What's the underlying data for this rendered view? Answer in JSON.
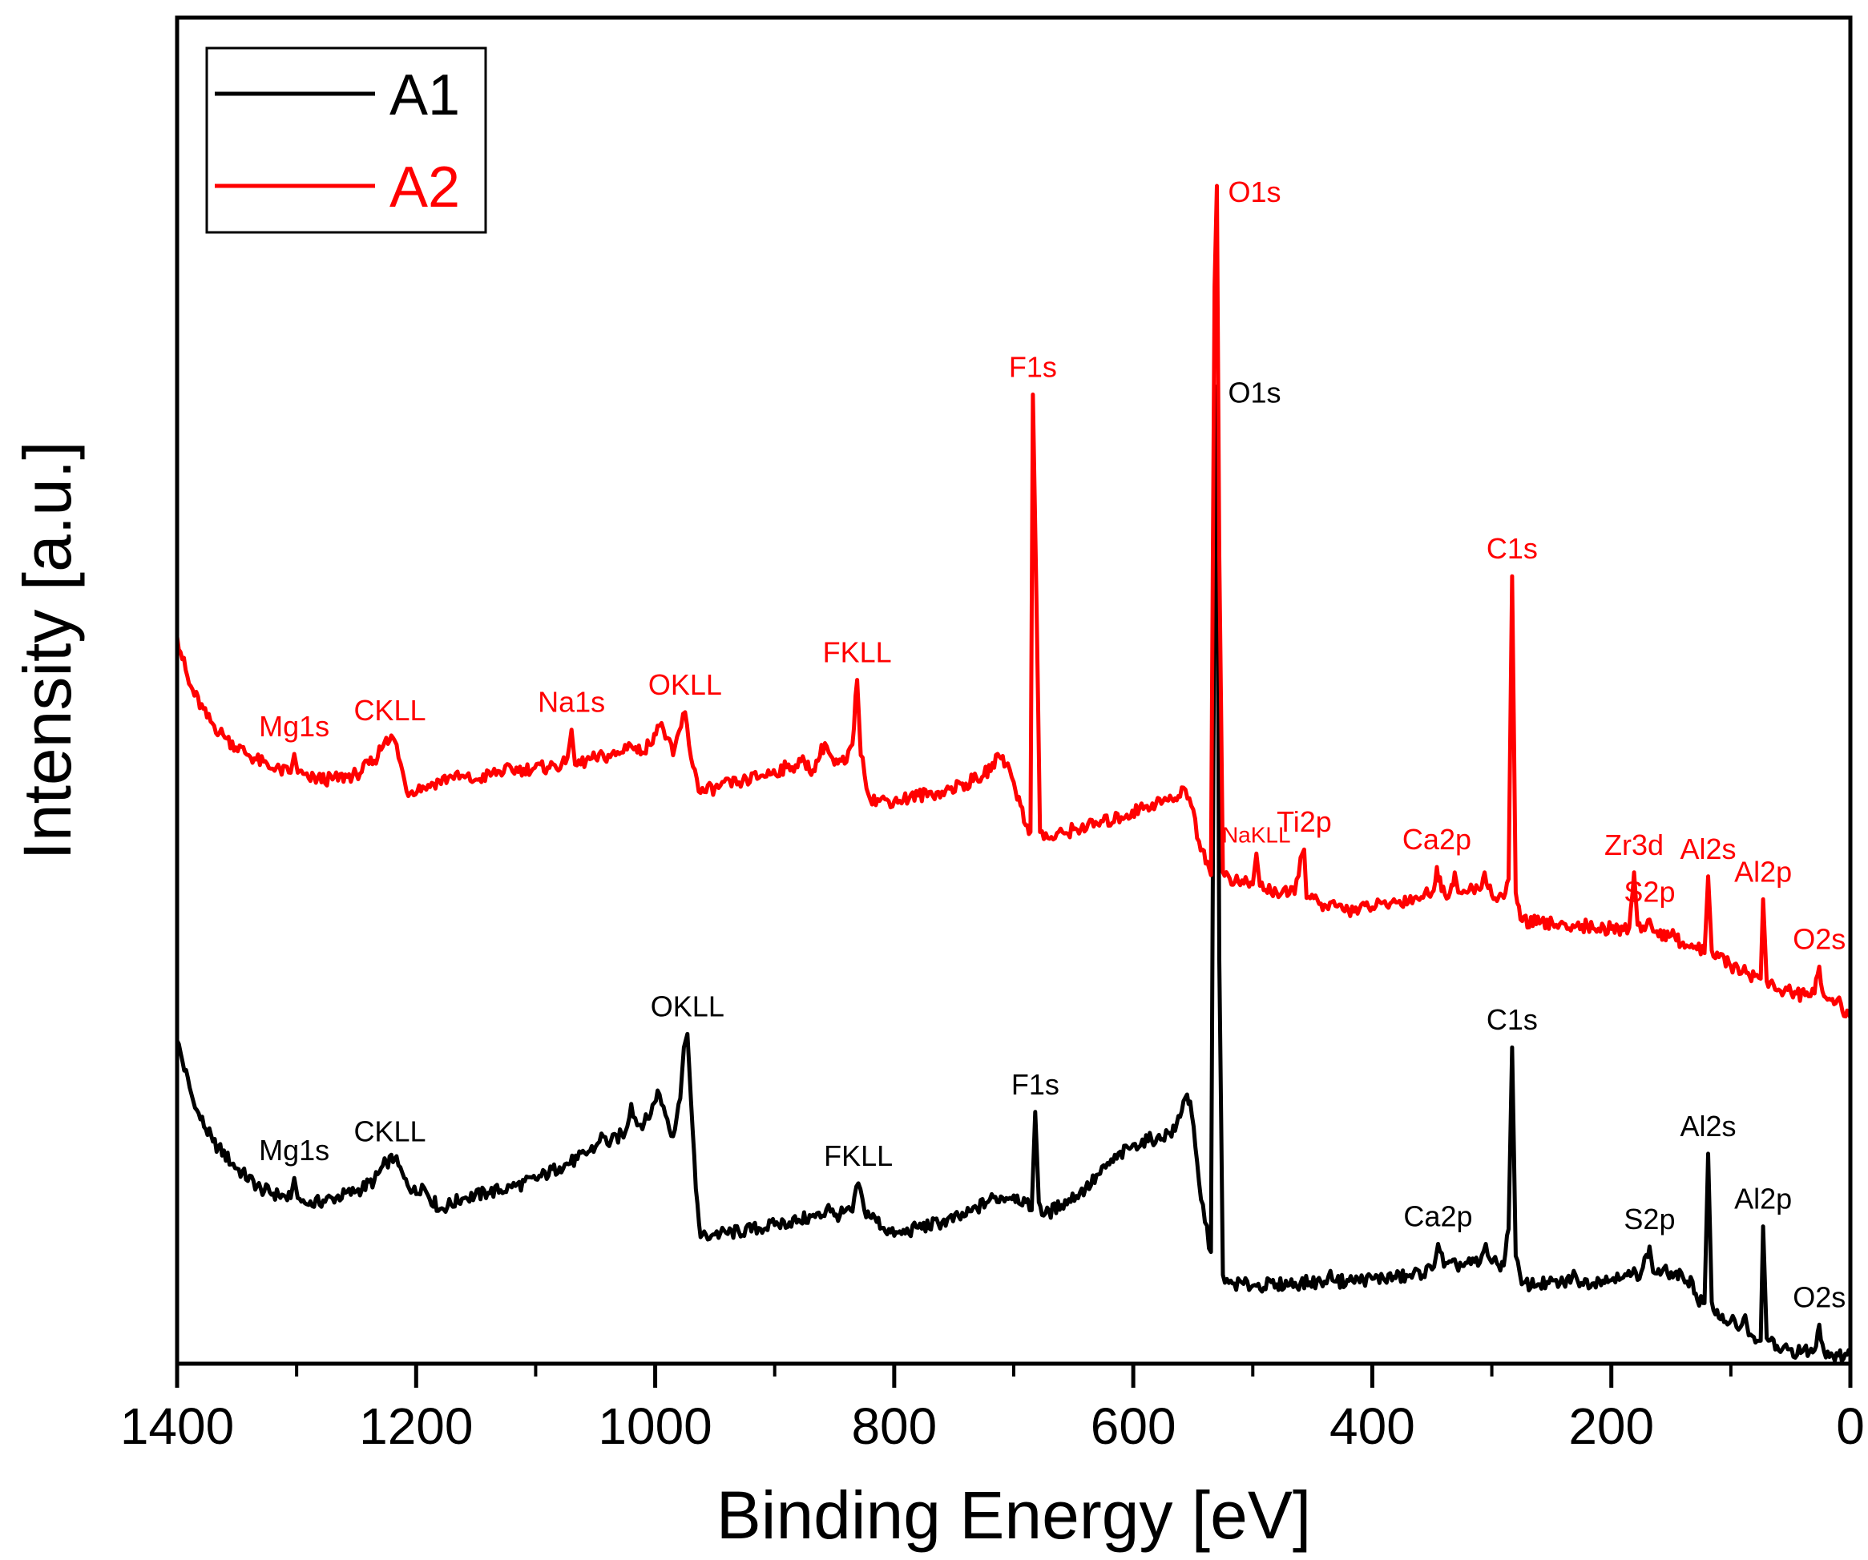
{
  "chart_data": {
    "type": "line",
    "title": "",
    "xlabel": "Binding Energy [eV]",
    "ylabel": "Intensity [a.u.]",
    "xlim": [
      1400,
      0
    ],
    "ylim": [
      0,
      100
    ],
    "x_reversed": true,
    "y_ticks_shown": false,
    "grid": false,
    "legend_position": "top-left",
    "x_ticks": [
      "1400",
      "1200",
      "1000",
      "800",
      "600",
      "400",
      "200",
      "0"
    ],
    "series": [
      {
        "name": "A1",
        "color": "#000000",
        "points": [
          [
            1400,
            24.0
          ],
          [
            1385,
            19.0
          ],
          [
            1370,
            16.5
          ],
          [
            1350,
            14.5
          ],
          [
            1330,
            13.0
          ],
          [
            1315,
            12.5
          ],
          [
            1305,
            12.3
          ],
          [
            1302,
            13.8
          ],
          [
            1299,
            12.3
          ],
          [
            1290,
            11.8
          ],
          [
            1270,
            12.3
          ],
          [
            1250,
            12.8
          ],
          [
            1235,
            13.6
          ],
          [
            1225,
            15.0
          ],
          [
            1218,
            15.2
          ],
          [
            1210,
            13.8
          ],
          [
            1200,
            12.6
          ],
          [
            1195,
            13.3
          ],
          [
            1190,
            12.5
          ],
          [
            1180,
            11.5
          ],
          [
            1160,
            12.3
          ],
          [
            1140,
            12.7
          ],
          [
            1120,
            13.1
          ],
          [
            1100,
            13.7
          ],
          [
            1080,
            14.6
          ],
          [
            1065,
            15.2
          ],
          [
            1050,
            16.1
          ],
          [
            1045,
            17.1
          ],
          [
            1040,
            16.3
          ],
          [
            1025,
            17.2
          ],
          [
            1020,
            19.3
          ],
          [
            1015,
            17.7
          ],
          [
            1005,
            18.2
          ],
          [
            998,
            20.3
          ],
          [
            993,
            19.1
          ],
          [
            985,
            16.9
          ],
          [
            979,
            19.7
          ],
          [
            976,
            23.5
          ],
          [
            973,
            24.5
          ],
          [
            970,
            19.5
          ],
          [
            966,
            13.0
          ],
          [
            962,
            9.4
          ],
          [
            950,
            9.6
          ],
          [
            930,
            9.8
          ],
          [
            900,
            10.3
          ],
          [
            880,
            10.7
          ],
          [
            860,
            11.0
          ],
          [
            855,
            11.8
          ],
          [
            850,
            11.0
          ],
          [
            835,
            11.3
          ],
          [
            830,
            13.4
          ],
          [
            825,
            11.4
          ],
          [
            800,
            9.5
          ],
          [
            780,
            10.1
          ],
          [
            760,
            10.5
          ],
          [
            740,
            11.0
          ],
          [
            720,
            12.2
          ],
          [
            700,
            12.5
          ],
          [
            690,
            12.0
          ],
          [
            685,
            11.4
          ],
          [
            682,
            18.7
          ],
          [
            679,
            12.0
          ],
          [
            675,
            11.0
          ],
          [
            660,
            11.8
          ],
          [
            640,
            13.0
          ],
          [
            620,
            14.8
          ],
          [
            600,
            16.3
          ],
          [
            580,
            16.8
          ],
          [
            565,
            17.3
          ],
          [
            558,
            19.5
          ],
          [
            555,
            20.0
          ],
          [
            551,
            18.5
          ],
          [
            545,
            13.5
          ],
          [
            540,
            10.5
          ],
          [
            535,
            8.3
          ],
          [
            532,
            61.0
          ],
          [
            530,
            72.6
          ],
          [
            528,
            30.0
          ],
          [
            525,
            6.6
          ],
          [
            520,
            6.0
          ],
          [
            500,
            5.8
          ],
          [
            480,
            5.9
          ],
          [
            460,
            6.0
          ],
          [
            440,
            6.1
          ],
          [
            435,
            6.9
          ],
          [
            430,
            6.1
          ],
          [
            400,
            6.3
          ],
          [
            370,
            6.5
          ],
          [
            350,
            7.0
          ],
          [
            345,
            8.9
          ],
          [
            340,
            7.2
          ],
          [
            310,
            7.5
          ],
          [
            305,
            8.9
          ],
          [
            300,
            7.5
          ],
          [
            290,
            7.3
          ],
          [
            286,
            10.0
          ],
          [
            283,
            23.5
          ],
          [
            280,
            8.0
          ],
          [
            275,
            5.9
          ],
          [
            260,
            5.9
          ],
          [
            240,
            6.0
          ],
          [
            230,
            6.6
          ],
          [
            225,
            6.0
          ],
          [
            210,
            6.2
          ],
          [
            200,
            6.2
          ],
          [
            195,
            6.7
          ],
          [
            190,
            6.4
          ],
          [
            175,
            6.8
          ],
          [
            168,
            8.7
          ],
          [
            165,
            6.8
          ],
          [
            150,
            6.8
          ],
          [
            140,
            6.4
          ],
          [
            132,
            6.1
          ],
          [
            128,
            4.7
          ],
          [
            122,
            4.5
          ],
          [
            119,
            15.6
          ],
          [
            116,
            4.6
          ],
          [
            110,
            3.4
          ],
          [
            100,
            3.2
          ],
          [
            92,
            2.7
          ],
          [
            88,
            3.6
          ],
          [
            85,
            2.1
          ],
          [
            78,
            1.7
          ],
          [
            75,
            1.7
          ],
          [
            73,
            10.2
          ],
          [
            70,
            1.9
          ],
          [
            60,
            1.0
          ],
          [
            40,
            0.9
          ],
          [
            30,
            1.0
          ],
          [
            26,
            2.9
          ],
          [
            22,
            0.9
          ],
          [
            10,
            0.6
          ],
          [
            0,
            0.8
          ]
        ]
      },
      {
        "name": "A2",
        "color": "#ff0000",
        "points": [
          [
            1400,
            54.0
          ],
          [
            1390,
            50.5
          ],
          [
            1375,
            48.0
          ],
          [
            1360,
            46.5
          ],
          [
            1340,
            45.2
          ],
          [
            1320,
            44.2
          ],
          [
            1305,
            43.9
          ],
          [
            1302,
            45.3
          ],
          [
            1299,
            43.9
          ],
          [
            1290,
            43.5
          ],
          [
            1270,
            43.4
          ],
          [
            1250,
            43.8
          ],
          [
            1235,
            44.8
          ],
          [
            1225,
            46.5
          ],
          [
            1218,
            46.3
          ],
          [
            1213,
            44.6
          ],
          [
            1208,
            42.5
          ],
          [
            1190,
            43.0
          ],
          [
            1170,
            43.6
          ],
          [
            1150,
            43.4
          ],
          [
            1130,
            44.0
          ],
          [
            1110,
            44.2
          ],
          [
            1090,
            44.3
          ],
          [
            1075,
            44.6
          ],
          [
            1070,
            47.1
          ],
          [
            1067,
            44.5
          ],
          [
            1050,
            45.0
          ],
          [
            1030,
            45.3
          ],
          [
            1022,
            46.1
          ],
          [
            1015,
            45.4
          ],
          [
            1005,
            46.0
          ],
          [
            998,
            47.4
          ],
          [
            993,
            47.1
          ],
          [
            985,
            45.2
          ],
          [
            980,
            47.0
          ],
          [
            975,
            48.4
          ],
          [
            970,
            45.0
          ],
          [
            962,
            42.4
          ],
          [
            950,
            42.8
          ],
          [
            930,
            43.2
          ],
          [
            910,
            43.7
          ],
          [
            890,
            44.3
          ],
          [
            875,
            44.7
          ],
          [
            868,
            44.1
          ],
          [
            858,
            46.1
          ],
          [
            850,
            44.5
          ],
          [
            840,
            44.7
          ],
          [
            835,
            46.0
          ],
          [
            831,
            50.8
          ],
          [
            828,
            45.2
          ],
          [
            820,
            41.9
          ],
          [
            800,
            41.8
          ],
          [
            780,
            42.2
          ],
          [
            760,
            42.5
          ],
          [
            740,
            43.1
          ],
          [
            725,
            43.7
          ],
          [
            712,
            45.1
          ],
          [
            705,
            44.6
          ],
          [
            700,
            43.2
          ],
          [
            690,
            40.0
          ],
          [
            686,
            39.5
          ],
          [
            684,
            72.0
          ],
          [
            681,
            57.0
          ],
          [
            678,
            39.5
          ],
          [
            670,
            39.0
          ],
          [
            650,
            39.7
          ],
          [
            630,
            40.1
          ],
          [
            610,
            40.6
          ],
          [
            590,
            41.4
          ],
          [
            575,
            41.8
          ],
          [
            565,
            42.0
          ],
          [
            558,
            42.8
          ],
          [
            553,
            42.0
          ],
          [
            545,
            38.8
          ],
          [
            538,
            37.3
          ],
          [
            535,
            36.3
          ],
          [
            532,
            80.0
          ],
          [
            530,
            87.5
          ],
          [
            528,
            60.0
          ],
          [
            525,
            36.5
          ],
          [
            515,
            35.8
          ],
          [
            500,
            35.6
          ],
          [
            497,
            37.9
          ],
          [
            494,
            35.5
          ],
          [
            480,
            35.0
          ],
          [
            465,
            34.9
          ],
          [
            460,
            37.6
          ],
          [
            457,
            38.2
          ],
          [
            455,
            34.6
          ],
          [
            440,
            34.1
          ],
          [
            420,
            33.7
          ],
          [
            400,
            33.9
          ],
          [
            385,
            34.2
          ],
          [
            365,
            34.6
          ],
          [
            350,
            35.0
          ],
          [
            346,
            36.9
          ],
          [
            342,
            35.1
          ],
          [
            335,
            35.0
          ],
          [
            331,
            36.5
          ],
          [
            328,
            35.0
          ],
          [
            310,
            35.2
          ],
          [
            306,
            36.5
          ],
          [
            300,
            34.8
          ],
          [
            290,
            34.6
          ],
          [
            286,
            36.0
          ],
          [
            283,
            58.5
          ],
          [
            280,
            35.0
          ],
          [
            276,
            33.0
          ],
          [
            260,
            32.7
          ],
          [
            240,
            32.7
          ],
          [
            220,
            32.5
          ],
          [
            200,
            32.3
          ],
          [
            190,
            32.2
          ],
          [
            185,
            32.4
          ],
          [
            181,
            36.5
          ],
          [
            178,
            32.6
          ],
          [
            172,
            32.2
          ],
          [
            168,
            33.0
          ],
          [
            165,
            32.1
          ],
          [
            150,
            31.8
          ],
          [
            140,
            31.3
          ],
          [
            130,
            31.0
          ],
          [
            122,
            30.5
          ],
          [
            119,
            36.2
          ],
          [
            116,
            30.7
          ],
          [
            110,
            30.2
          ],
          [
            100,
            29.5
          ],
          [
            90,
            29.2
          ],
          [
            80,
            28.8
          ],
          [
            75,
            28.6
          ],
          [
            73,
            34.5
          ],
          [
            70,
            28.4
          ],
          [
            60,
            27.8
          ],
          [
            45,
            27.5
          ],
          [
            35,
            27.3
          ],
          [
            30,
            27.5
          ],
          [
            26,
            29.5
          ],
          [
            22,
            27.3
          ],
          [
            15,
            27.1
          ],
          [
            8,
            26.8
          ],
          [
            4,
            25.8
          ],
          [
            0,
            25.7
          ]
        ]
      }
    ],
    "annotations": {
      "A1": [
        {
          "label": "O1s",
          "x": 530,
          "y": 72.6
        },
        {
          "label": "OKLL",
          "x": 973,
          "y": 24.5
        },
        {
          "label": "F1s",
          "x": 682,
          "y": 18.7
        },
        {
          "label": "C1s",
          "x": 283,
          "y": 23.5
        },
        {
          "label": "Mg1s",
          "x": 1302,
          "y": 13.8
        },
        {
          "label": "CKLL",
          "x": 1222,
          "y": 15.2
        },
        {
          "label": "FKLL",
          "x": 830,
          "y": 13.4
        },
        {
          "label": "Ca2p",
          "x": 345,
          "y": 8.9
        },
        {
          "label": "Al2s",
          "x": 119,
          "y": 15.6
        },
        {
          "label": "S2p",
          "x": 168,
          "y": 8.7
        },
        {
          "label": "Al2p",
          "x": 73,
          "y": 10.2
        },
        {
          "label": "O2s",
          "x": 26,
          "y": 2.9
        }
      ],
      "A2": [
        {
          "label": "O1s",
          "x": 530,
          "y": 87.5
        },
        {
          "label": "F1s",
          "x": 684,
          "y": 72.0
        },
        {
          "label": "C1s",
          "x": 283,
          "y": 58.5
        },
        {
          "label": "FKLL",
          "x": 831,
          "y": 50.8
        },
        {
          "label": "OKLL",
          "x": 975,
          "y": 48.4
        },
        {
          "label": "Na1s",
          "x": 1070,
          "y": 47.1
        },
        {
          "label": "Mg1s",
          "x": 1302,
          "y": 45.3
        },
        {
          "label": "CKLL",
          "x": 1222,
          "y": 46.5
        },
        {
          "label": "NaKLL",
          "x": 497,
          "y": 37.9
        },
        {
          "label": "Ti2p",
          "x": 457,
          "y": 38.2
        },
        {
          "label": "Ca2p",
          "x": 346,
          "y": 36.9
        },
        {
          "label": "Zr3d",
          "x": 181,
          "y": 36.5
        },
        {
          "label": "S2p",
          "x": 168,
          "y": 33.0
        },
        {
          "label": "Al2s",
          "x": 119,
          "y": 36.2
        },
        {
          "label": "Al2p",
          "x": 73,
          "y": 34.5
        },
        {
          "label": "O2s",
          "x": 26,
          "y": 29.5
        }
      ]
    }
  }
}
